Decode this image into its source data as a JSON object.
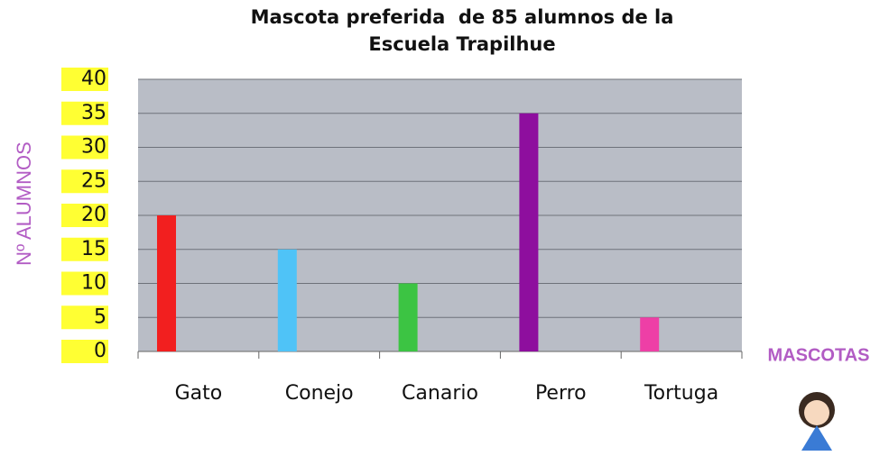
{
  "chart_data": {
    "type": "bar",
    "title": [
      "Mascota preferida  de 85 alumnos de la",
      "Escuela Trapilhue"
    ],
    "y_label": "Nº ALUMNOS",
    "x_label": "MASCOTAS",
    "categories": [
      "Gato",
      "Conejo",
      "Canario",
      "Perro",
      "Tortuga"
    ],
    "values": [
      20,
      15,
      10,
      35,
      5
    ],
    "colors": [
      "#f21f1f",
      "#4fc3f7",
      "#3cc443",
      "#8e0e9e",
      "#ee3fa6"
    ],
    "ylim": [
      0,
      40
    ],
    "yticks": [
      0,
      5,
      10,
      15,
      20,
      25,
      30,
      35,
      40
    ],
    "grid": true
  }
}
